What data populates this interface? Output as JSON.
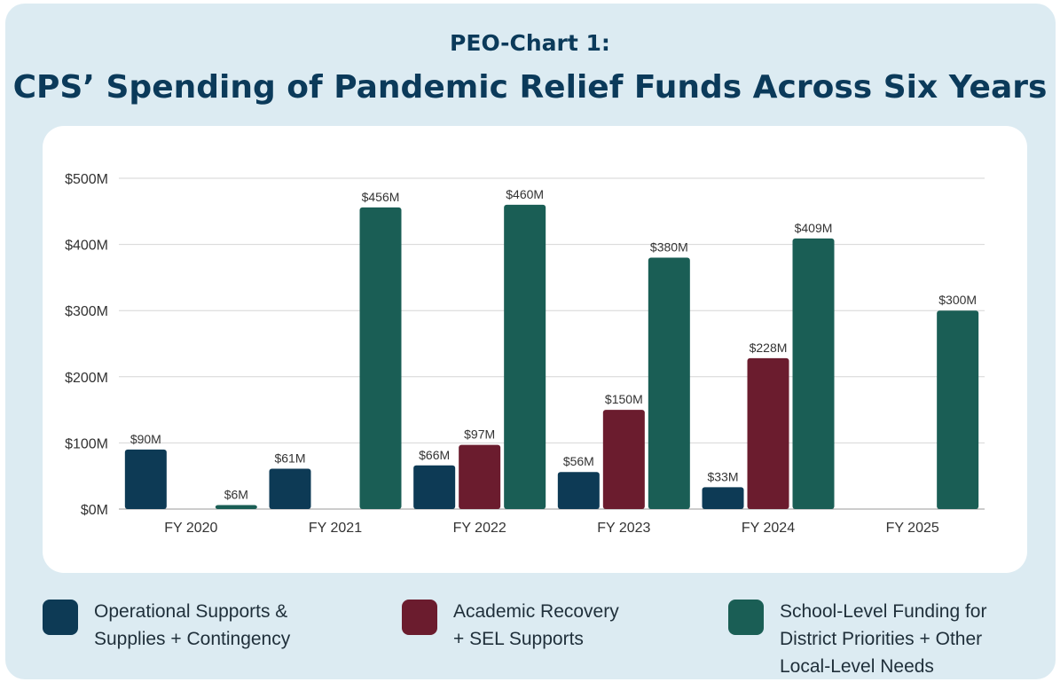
{
  "header": {
    "subtitle": "PEO-Chart 1:",
    "title": "CPS’ Spending of Pandemic Relief Funds Across Six Years"
  },
  "colors": {
    "panel_bg": "#dcebf2",
    "operational": "#0d3a55",
    "academic": "#6b1c2e",
    "school": "#1a5e55"
  },
  "legend": [
    {
      "lines": [
        "Operational Supports &",
        "Supplies + Contingency"
      ],
      "color": "#0d3a55"
    },
    {
      "lines": [
        "Academic Recovery",
        "+ SEL Supports"
      ],
      "color": "#6b1c2e"
    },
    {
      "lines": [
        "School-Level Funding for",
        "District Priorities + Other",
        "Local-Level Needs"
      ],
      "color": "#1a5e55"
    }
  ],
  "chart_data": {
    "type": "bar",
    "categories": [
      "FY 2020",
      "FY 2021",
      "FY 2022",
      "FY 2023",
      "FY 2024",
      "FY 2025"
    ],
    "ylim": [
      0,
      500
    ],
    "yticks": [
      0,
      100,
      200,
      300,
      400,
      500
    ],
    "ytick_labels": [
      "$0M",
      "$100M",
      "$200M",
      "$300M",
      "$400M",
      "$500M"
    ],
    "grid": true,
    "legend_position": "bottom",
    "series": [
      {
        "name": "Operational Supports & Supplies + Contingency",
        "color": "#0d3a55",
        "values": [
          90,
          61,
          66,
          56,
          33,
          null
        ],
        "labels": [
          "$90M",
          "$61M",
          "$66M",
          "$56M",
          "$33M",
          ""
        ]
      },
      {
        "name": "Academic Recovery + SEL Supports",
        "color": "#6b1c2e",
        "values": [
          null,
          null,
          97,
          150,
          228,
          null
        ],
        "labels": [
          "",
          "",
          "$97M",
          "$150M",
          "$228M",
          ""
        ]
      },
      {
        "name": "School-Level Funding for District Priorities + Other Local-Level Needs",
        "color": "#1a5e55",
        "values": [
          6,
          456,
          460,
          380,
          409,
          300
        ],
        "labels": [
          "$6M",
          "$456M",
          "$460M",
          "$380M",
          "$409M",
          "$300M"
        ]
      }
    ]
  }
}
